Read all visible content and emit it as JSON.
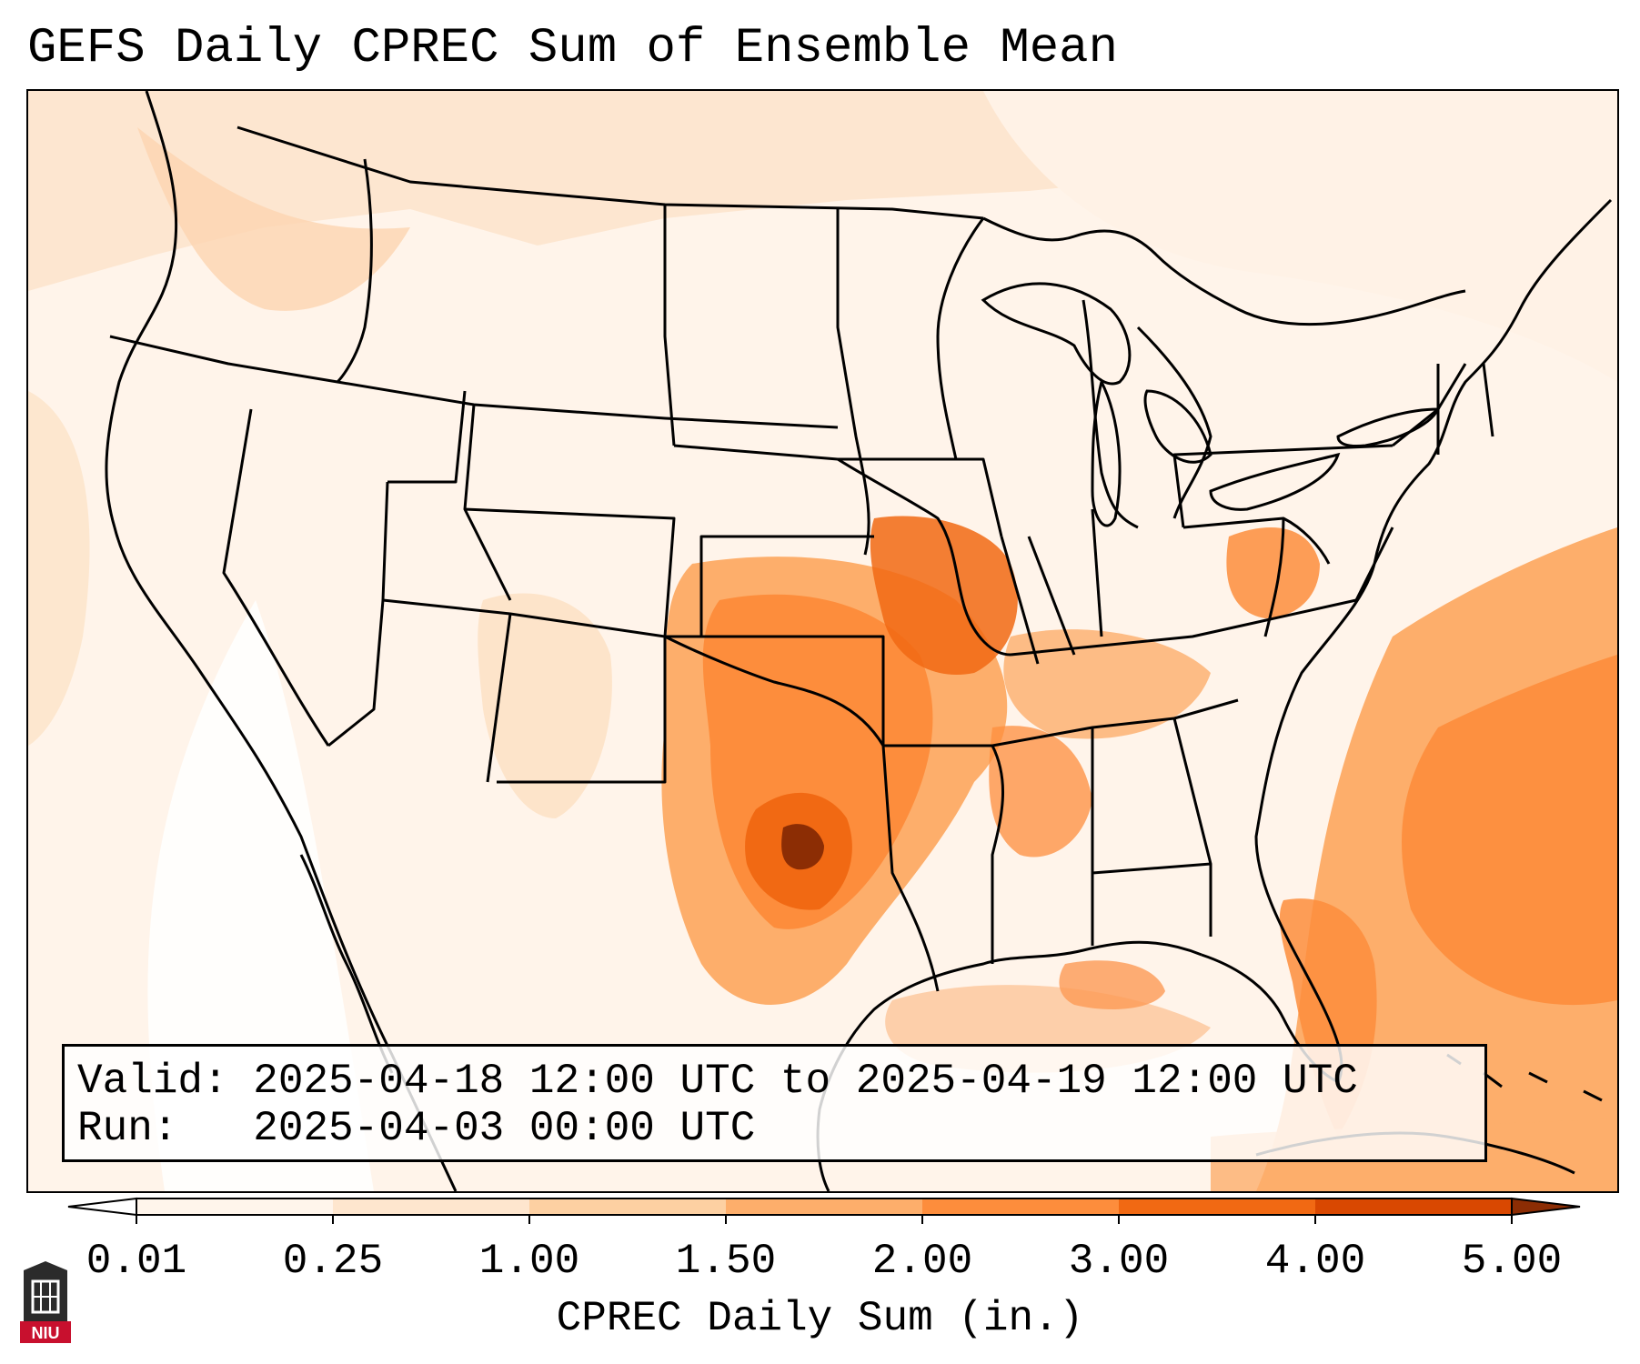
{
  "title": "GEFS Daily CPREC Sum of Ensemble Mean",
  "info": {
    "valid_line": "Valid: 2025-04-18 12:00 UTC to 2025-04-19 12:00 UTC",
    "run_line": "Run:   2025-04-03 00:00 UTC"
  },
  "colorbar": {
    "label": "CPREC Daily Sum (in.)",
    "ticks": [
      "0.01",
      "0.25",
      "1.00",
      "1.50",
      "2.00",
      "3.00",
      "4.00",
      "5.00"
    ],
    "colors": [
      "#fff5eb",
      "#fee6ce",
      "#fdd0a2",
      "#fdae6b",
      "#fd8d3c",
      "#f16913",
      "#d94801",
      "#8c2d04"
    ]
  },
  "logo": {
    "text": "NIU",
    "color": "#c8102e"
  },
  "colors": {
    "background": "#fff4ea",
    "border": "#000000"
  }
}
